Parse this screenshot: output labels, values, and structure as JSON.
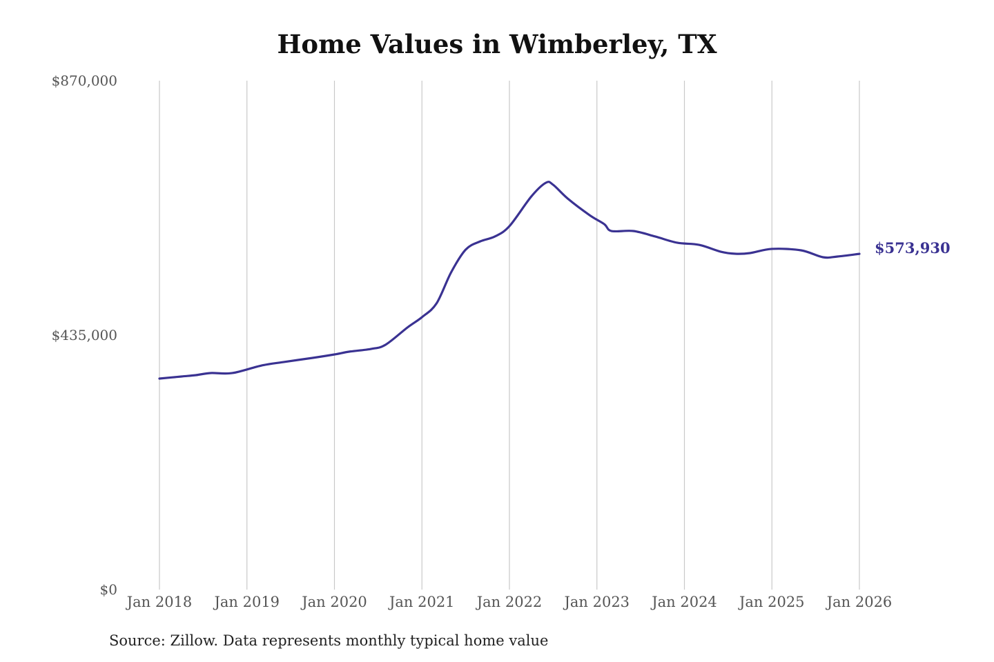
{
  "chart_data": {
    "type": "line",
    "title": "Home Values in Wimberley, TX",
    "source": "Source: Zillow. Data represents monthly typical home value",
    "xlabel": "",
    "ylabel": "",
    "ylim": [
      0,
      870000
    ],
    "xlim": [
      "2018-01",
      "2026-01"
    ],
    "grid": "vertical",
    "y_ticks": [
      {
        "value": 0,
        "label": "$0"
      },
      {
        "value": 435000,
        "label": "$435,000"
      },
      {
        "value": 870000,
        "label": "$870,000"
      }
    ],
    "x_ticks": [
      {
        "value": "2018-01",
        "label": "Jan 2018"
      },
      {
        "value": "2019-01",
        "label": "Jan 2019"
      },
      {
        "value": "2020-01",
        "label": "Jan 2020"
      },
      {
        "value": "2021-01",
        "label": "Jan 2021"
      },
      {
        "value": "2022-01",
        "label": "Jan 2022"
      },
      {
        "value": "2023-01",
        "label": "Jan 2023"
      },
      {
        "value": "2024-01",
        "label": "Jan 2024"
      },
      {
        "value": "2025-01",
        "label": "Jan 2025"
      },
      {
        "value": "2026-01",
        "label": "Jan 2026"
      }
    ],
    "series": [
      {
        "name": "Typical home value",
        "color": "#3a3292",
        "end_label": "$573,930",
        "x": [
          "2018-01",
          "2018-04",
          "2018-06",
          "2018-08",
          "2018-11",
          "2019-03",
          "2019-06",
          "2019-10",
          "2020-01",
          "2020-03",
          "2020-06",
          "2020-08",
          "2020-11",
          "2021-01",
          "2021-03",
          "2021-05",
          "2021-07",
          "2021-09",
          "2021-11",
          "2022-01",
          "2022-04",
          "2022-06",
          "2022-07",
          "2022-09",
          "2022-12",
          "2023-02",
          "2023-03",
          "2023-06",
          "2023-09",
          "2023-12",
          "2024-03",
          "2024-06",
          "2024-08",
          "2024-10",
          "2025-01",
          "2025-05",
          "2025-08",
          "2025-10",
          "2026-01"
        ],
        "values": [
          360700,
          364300,
          366600,
          370200,
          370200,
          383100,
          389000,
          396100,
          402000,
          406700,
          411400,
          418500,
          448000,
          465700,
          489200,
          542300,
          581200,
          595300,
          603600,
          621300,
          672000,
          695500,
          692000,
          668400,
          640100,
          624800,
          613000,
          613000,
          603600,
          593000,
          589400,
          577600,
          574100,
          575300,
          582400,
          580000,
          568200,
          569400,
          573930
        ]
      }
    ]
  }
}
